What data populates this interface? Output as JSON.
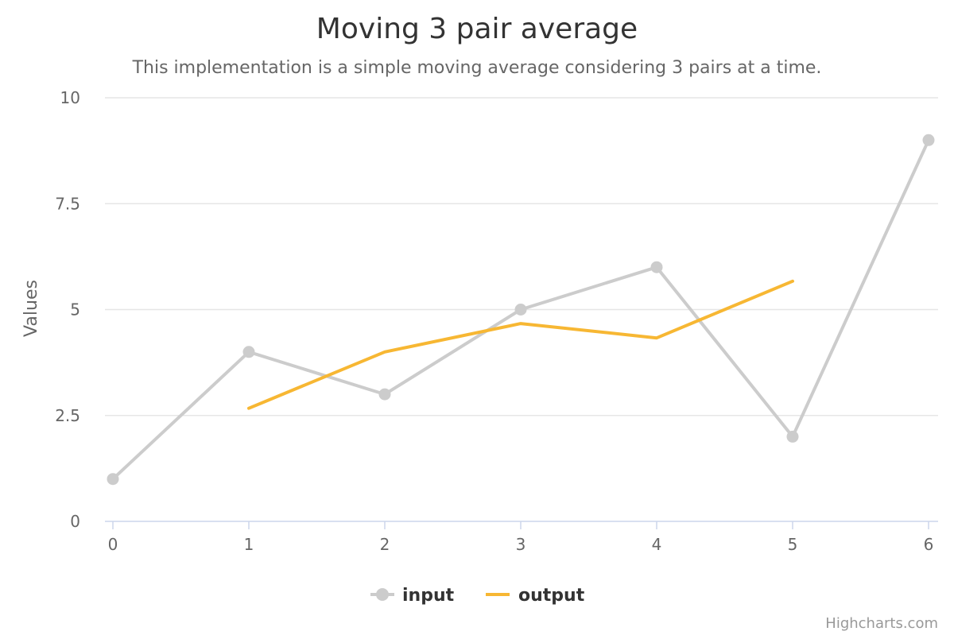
{
  "chart_data": {
    "type": "line",
    "title": "Moving 3 pair average",
    "subtitle": "This implementation is a simple moving average considering 3 pairs at a time.",
    "ylabel": "Values",
    "xlabel": "",
    "xlim": [
      0,
      6
    ],
    "ylim": [
      0,
      10
    ],
    "x_ticks": [
      0,
      1,
      2,
      3,
      4,
      5,
      6
    ],
    "y_ticks": [
      0,
      2.5,
      5,
      7.5,
      10
    ],
    "grid": true,
    "legend_position": "bottom-center",
    "series": [
      {
        "name": "input",
        "color": "#cccccc",
        "markers": true,
        "x": [
          0,
          1,
          2,
          3,
          4,
          5,
          6
        ],
        "values": [
          1,
          4,
          3,
          5,
          6,
          2,
          9
        ]
      },
      {
        "name": "output",
        "color": "#f7b733",
        "markers": false,
        "x": [
          1,
          2,
          3,
          4,
          5
        ],
        "values": [
          2.67,
          4,
          4.67,
          4.33,
          5.67
        ]
      }
    ]
  },
  "credits": "Highcharts.com"
}
